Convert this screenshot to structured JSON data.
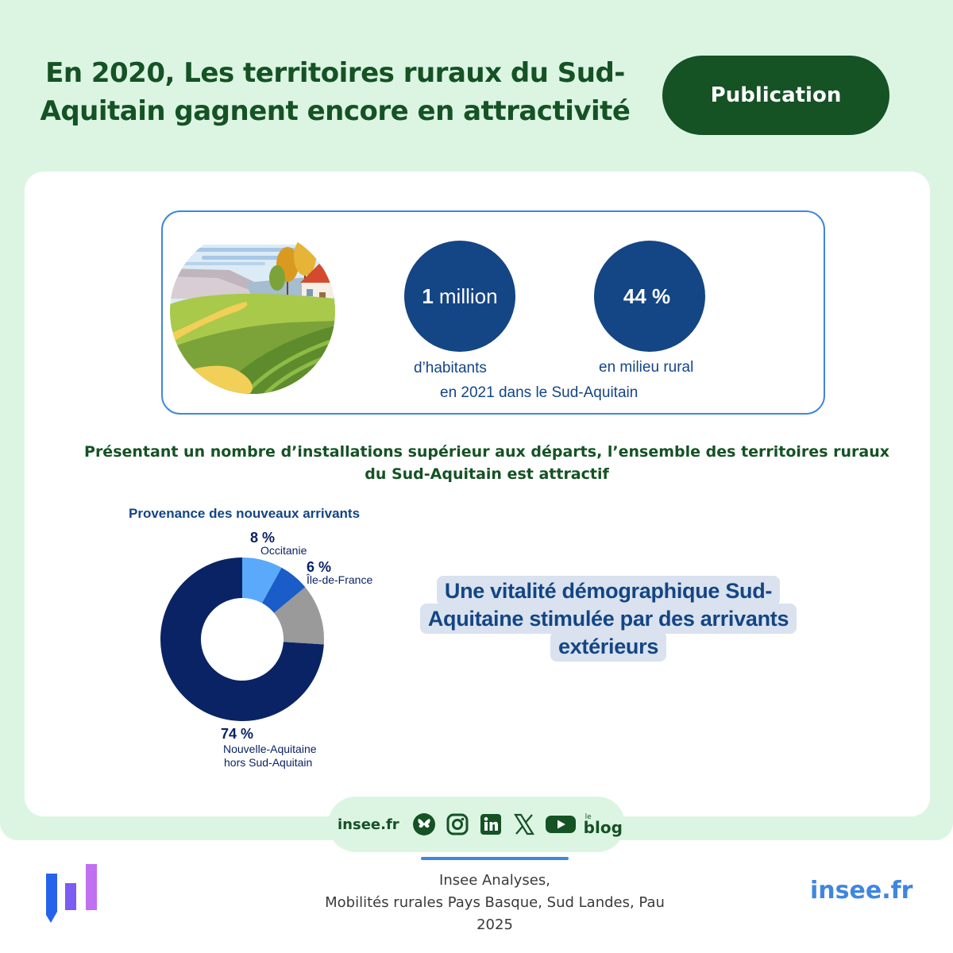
{
  "header": {
    "title": "En 2020, Les territoires ruraux du Sud-Aquitain gagnent encore en attractivité",
    "publication_button": "Publication"
  },
  "stats": {
    "population_value": "1",
    "population_unit": "million",
    "population_label": "d’habitants",
    "rural_value": "44 %",
    "rural_label": "en milieu rural",
    "context": "en 2021 dans le Sud-Aquitain"
  },
  "subtitle": "Présentant un nombre d’installations supérieur aux départs, l’ensemble des territoires ruraux du Sud-Aquitain est attractif",
  "chart_data": {
    "type": "pie",
    "title": "Provenance des nouveaux arrivants",
    "donut": true,
    "start_angle_deg": 0,
    "slices": [
      {
        "label": "Occitanie",
        "value": 8,
        "value_label": "8 %",
        "color": "#5aa9fa"
      },
      {
        "label": "Île-de-France",
        "value": 6,
        "value_label": "6 %",
        "color": "#1a5cc8"
      },
      {
        "label": "",
        "value": 12,
        "value_label": "",
        "color": "#9a9a9a"
      },
      {
        "label_lines": [
          "Nouvelle-Aquitaine",
          "hors Sud-Aquitain"
        ],
        "value": 74,
        "value_label": "74 %",
        "color": "#0a2365"
      }
    ]
  },
  "vitality_text": "Une vitalité démographique Sud-Aquitaine stimulée par des arrivants extérieurs",
  "social": {
    "site": "insee.fr",
    "icons": [
      "bluesky-icon",
      "instagram-icon",
      "linkedin-icon",
      "x-icon",
      "youtube-icon",
      "blog-icon"
    ],
    "blog_small": "le",
    "blog_big": "blog"
  },
  "footer": {
    "source_line1": "Insee Analyses,",
    "source_line2": "Mobilités rurales Pays Basque, Sud Landes, Pau",
    "source_line3": "2025",
    "site": "insee.fr"
  }
}
